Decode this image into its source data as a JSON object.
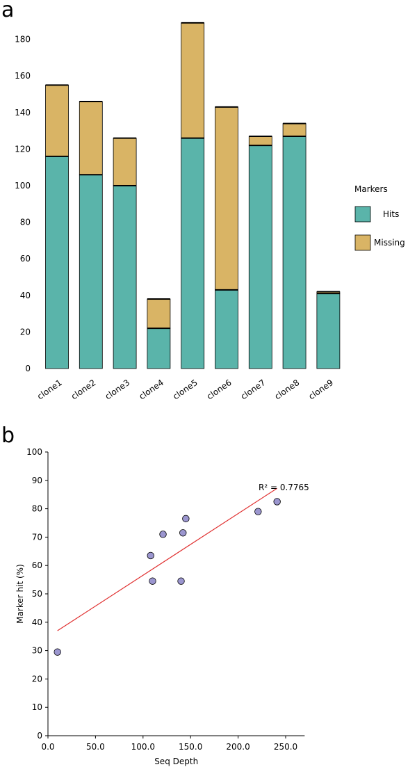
{
  "panels": {
    "a_label": "a",
    "b_label": "b"
  },
  "chart_data": [
    {
      "type": "bar",
      "stacked": true,
      "categories": [
        "clone1",
        "clone2",
        "clone3",
        "clone4",
        "clone5",
        "clone6",
        "clone7",
        "clone8",
        "clone9"
      ],
      "series": [
        {
          "name": "Hits",
          "color": "#5ab4aa",
          "values": [
            116,
            106,
            100,
            22,
            126,
            43,
            122,
            127,
            41
          ]
        },
        {
          "name": "Missing",
          "color": "#d9b465",
          "values": [
            39,
            40,
            26,
            16,
            63,
            100,
            5,
            7,
            1
          ]
        }
      ],
      "ylim": [
        0,
        190
      ],
      "yticks": [
        0,
        20,
        40,
        60,
        80,
        100,
        120,
        140,
        160,
        180
      ],
      "legend": {
        "title": "Markers",
        "position": "right"
      },
      "grid": false
    },
    {
      "type": "scatter",
      "x": [
        10,
        108,
        110,
        121,
        140,
        142,
        145,
        221,
        241
      ],
      "y": [
        29.5,
        63.5,
        54.5,
        71.0,
        54.5,
        71.5,
        76.5,
        79.0,
        82.5
      ],
      "xlabel": "Seq Depth",
      "ylabel": "Marker hit (%)",
      "xlim": [
        0,
        270
      ],
      "ylim": [
        0,
        100
      ],
      "xticks": [
        0,
        50,
        100,
        150,
        200,
        250
      ],
      "xtick_labels": [
        "0.0",
        "50.0",
        "100.0",
        "150.0",
        "200.0",
        "250.0"
      ],
      "yticks": [
        0,
        10,
        20,
        30,
        40,
        50,
        60,
        70,
        80,
        90,
        100
      ],
      "point_color": "#9b96cf",
      "trendline": {
        "type": "linear",
        "x": [
          10,
          241
        ],
        "y": [
          37.0,
          87.2
        ],
        "color": "#e03030",
        "label": "R² = 0.7765"
      },
      "grid": false
    }
  ]
}
